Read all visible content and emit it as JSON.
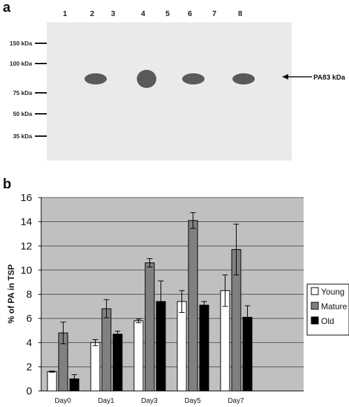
{
  "panel_a": {
    "letter": "a",
    "lanes": [
      "1",
      "2",
      "3",
      "4",
      "5",
      "6",
      "7",
      "8"
    ],
    "markers": [
      "150 kDa",
      "100 kDa",
      "75 kDa",
      "50 kDa",
      "35 kDa"
    ],
    "band_label": "PA83 kDa",
    "bands_present_in_lanes": [
      "2",
      "4",
      "6",
      "8"
    ]
  },
  "panel_b": {
    "letter": "b"
  },
  "chart_data": {
    "type": "bar",
    "ylabel": "% of PA in TSP",
    "xlabel": "",
    "ylim": [
      0,
      16
    ],
    "yticks": [
      "0",
      "2",
      "4",
      "6",
      "8",
      "10",
      "12",
      "14",
      "16"
    ],
    "grid": true,
    "legend_position": "right",
    "categories": [
      "Day0",
      "Day1",
      "Day3",
      "Day5",
      "Day7"
    ],
    "series": [
      {
        "name": "Young",
        "color": "#ffffff",
        "values": [
          1.6,
          4.0,
          5.8,
          7.4,
          8.3
        ],
        "errors": [
          0.05,
          0.25,
          0.15,
          0.9,
          1.3
        ]
      },
      {
        "name": "Mature",
        "color": "#808080",
        "values": [
          4.8,
          6.8,
          10.6,
          14.1,
          11.7
        ],
        "errors": [
          0.9,
          0.75,
          0.35,
          0.65,
          2.1
        ]
      },
      {
        "name": "Old",
        "color": "#000000",
        "values": [
          1.0,
          4.7,
          7.4,
          7.1,
          6.1
        ],
        "errors": [
          0.35,
          0.25,
          1.7,
          0.3,
          0.95
        ]
      }
    ]
  }
}
